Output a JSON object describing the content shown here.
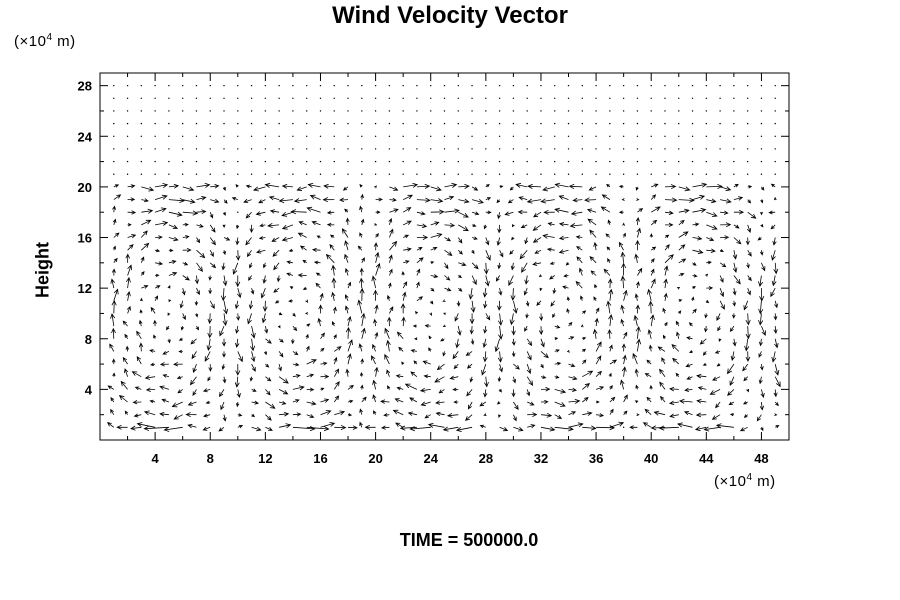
{
  "chart_data": {
    "type": "quiver",
    "title": "Wind Velocity Vector",
    "ylabel": "Height",
    "x_unit": {
      "prefix": "(×10",
      "exp": "4",
      "suffix": " m)"
    },
    "y_unit": {
      "prefix": "(×10",
      "exp": "4",
      "suffix": " m)"
    },
    "xlim": [
      0,
      50
    ],
    "ylim": [
      0,
      29
    ],
    "x_ticks": [
      4,
      8,
      12,
      16,
      20,
      24,
      28,
      32,
      36,
      40,
      44,
      48
    ],
    "y_ticks": [
      4,
      8,
      12,
      16,
      20,
      24,
      28
    ],
    "grid_spacing": 1,
    "wind_layer_top": 20,
    "time_label": "TIME = 500000.0"
  }
}
